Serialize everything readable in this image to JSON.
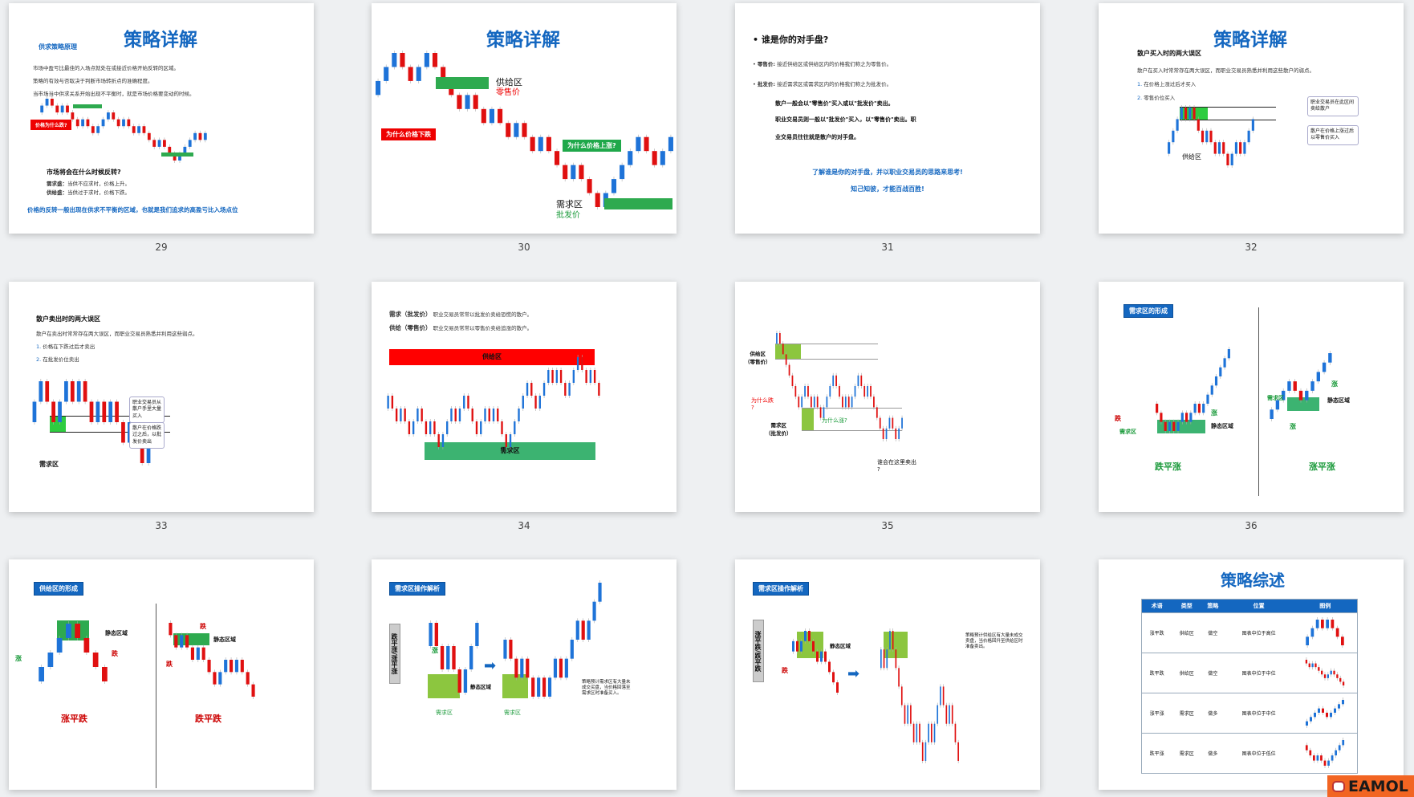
{
  "colors": {
    "accent": "#1467c0",
    "up": "#1e73d8",
    "down": "#e01010",
    "zone_green": "#2eaa4f",
    "zone_red": "#ff0000"
  },
  "slides": [
    {
      "page": "29",
      "title": "策略详解",
      "subtitle": "供求策略原理",
      "lines": [
        "市场中盈亏比最佳的入场点就处在或接近价格开始反转的区域。",
        "策略的有效与否取决于判断市场转折点的准确程度。",
        "当市场当中供求关系开始出现不平衡时，就是市场价格要变动的时候。"
      ],
      "red_label": "价格为什么跌?",
      "question": "市场将会在什么时候反转?",
      "demand": "需求盛：",
      "demand_text": "当供不应求时，价格上升。",
      "supply": "供给盛：",
      "supply_text": "当供过于求时，价格下跌。",
      "conclusion": "价格的反转一般出现在供求不平衡的区域，也就是我们追求的高盈亏比入场点位"
    },
    {
      "page": "30",
      "title": "策略详解",
      "supply_zone": "供给区",
      "supply_price": "零售价",
      "why_down": "为什么价格下跌",
      "why_up": "为什么价格上涨?",
      "demand_zone": "需求区",
      "demand_price": "批发价"
    },
    {
      "page": "31",
      "heading": "谁是你的对手盘?",
      "retail_label": "零售价:",
      "retail_text": "接近供给区或供给区内的价格我们称之为零售价。",
      "wholesale_label": "批发价:",
      "wholesale_text": "接近需求区或需求区内的价格我们称之为批发价。",
      "p1": "散户一般会以\"零售价\"买入或以\"批发价\"卖出。",
      "p2": "职业交易员则一般以\"批发价\"买入，以\"零售价\"卖出。职",
      "p3": "业交易员往往就是散户的对手盘。",
      "c1": "了解谁是你的对手盘，并以职业交易员的思路来思考!",
      "c2": "知己知彼，才能百战百胜!"
    },
    {
      "page": "32",
      "title": "策略详解",
      "heading": "散户买入时的两大误区",
      "intro": "散户在买入时常常存在两大误区，而职业交易员熟悉并利用这些散户的弱点。",
      "items": [
        "在价格上涨过后才买入",
        "零售价位买入"
      ],
      "callout1": "职业交易员在此区间卖给散户",
      "callout2": "散户在价格上涨过后以零售价买入",
      "zone": "供给区"
    },
    {
      "page": "33",
      "heading": "散户卖出时的两大误区",
      "intro": "散户在卖出时常常存在两大误区，而职业交易员熟悉并利用这些弱点。",
      "items": [
        "价格在下跌过后才卖出",
        "在批发价位卖出"
      ],
      "callout1": "职业交易员从散户手里大量买入",
      "callout2": "散户在价格跌过之后，以批发价卖出",
      "zone": "需求区"
    },
    {
      "page": "34",
      "l1_label": "需求（批发价）",
      "l1_text": "职业交易员常常以批发价卖给恐慌的散户。",
      "l2_label": "供给（零售价）",
      "l2_text": "职业交易员常常以零售价卖给追涨的散户。",
      "supply_zone": "供给区",
      "demand_zone": "需求区"
    },
    {
      "page": "35",
      "supply": "供给区",
      "supply_sub": "（零售价）",
      "why_down": "为什么跌",
      "q": "?",
      "demand": "需求区",
      "demand_sub": "（批发价）",
      "why_up": "为什么涨?",
      "who_sells": "谁会在这里卖出",
      "q2": "?"
    },
    {
      "page": "36",
      "tag": "需求区的形成",
      "left": {
        "down": "跌",
        "zone": "需求区",
        "up": "涨",
        "static": "静态区域",
        "caption": "跌平涨"
      },
      "right": {
        "zone": "需求区",
        "up1": "涨",
        "up2": "涨",
        "static": "静态区域",
        "caption": "涨平涨"
      }
    },
    {
      "page": "37",
      "tag": "供给区的形成",
      "left": {
        "up": "涨",
        "down": "跌",
        "static": "静态区域",
        "caption": "涨平跌"
      },
      "right": {
        "down1": "跌",
        "down2": "跌",
        "static": "静态区域",
        "caption": "跌平跌"
      }
    },
    {
      "page": "38",
      "tag": "需求区操作解析",
      "side": "跌平涨/涨平涨",
      "up": "涨",
      "static": "静态区域",
      "zone1": "需求区",
      "zone2": "需求区",
      "note": "策略预计需求区有大量未成交买盘，当价格回落至需求区时准备买入。"
    },
    {
      "page": "39",
      "tag": "需求区操作解析",
      "side": "涨平跌/跌平跌",
      "down": "跌",
      "static": "静态区域",
      "note": "策略预计供给区有大量未成交卖盘，当价格回升至供给区时准备卖出。"
    },
    {
      "page": "40",
      "title": "策略综述",
      "headers": [
        "术语",
        "类型",
        "策略",
        "位置",
        "图例"
      ],
      "rows": [
        [
          "涨平跌",
          "供给区",
          "做空",
          "图表中位于高位"
        ],
        [
          "跌平跌",
          "供给区",
          "做空",
          "图表中位于中位"
        ],
        [
          "涨平涨",
          "需求区",
          "做多",
          "图表中位于中位"
        ],
        [
          "跌平涨",
          "需求区",
          "做多",
          "图表中位于低位"
        ]
      ]
    }
  ],
  "watermark": "EAMOL"
}
